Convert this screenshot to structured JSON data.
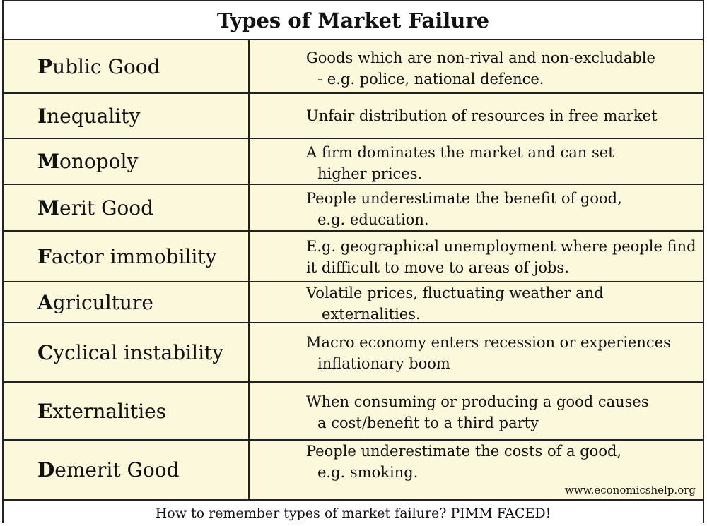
{
  "title": "Types of Market Failure",
  "rows": [
    {
      "first": "P",
      "rest": "ublic Good",
      "line1": "Goods which are non-rival and non-excludable",
      "line2": " - e.g. police, national defence."
    },
    {
      "first": "I",
      "rest": "nequality",
      "line1": "Unfair distribution of resources in free market",
      "line2": ""
    },
    {
      "first": "M",
      "rest": "onopoly",
      "line1": "A firm dominates the market and can set",
      "line2": "higher prices."
    },
    {
      "first": "M",
      "rest": "erit Good",
      "line1": "People underestimate the benefit of good,",
      "line2": "e.g. education."
    },
    {
      "first": "F",
      "rest": "actor immobility",
      "line1": "E.g. geographical unemployment where people find",
      "line2": "it difficult to move to areas of jobs."
    },
    {
      "first": "A",
      "rest": "griculture",
      "line1": "Volatile prices, fluctuating weather and",
      "line2": "externalities."
    },
    {
      "first": "C",
      "rest": "yclical instability",
      "line1": "Macro economy enters recession or experiences",
      "line2": "inflationary boom"
    },
    {
      "first": "E",
      "rest": "xternalities",
      "line1": "When consuming or producing a good causes",
      "line2": "a cost/benefit to a third party"
    },
    {
      "first": "D",
      "rest": "emerit Good",
      "line1": "People underestimate the costs of a good,",
      "line2": "e.g. smoking."
    }
  ],
  "watermark": "www.economicshelp.org",
  "footer": "How to remember types of market failure? PIMM FACED!"
}
